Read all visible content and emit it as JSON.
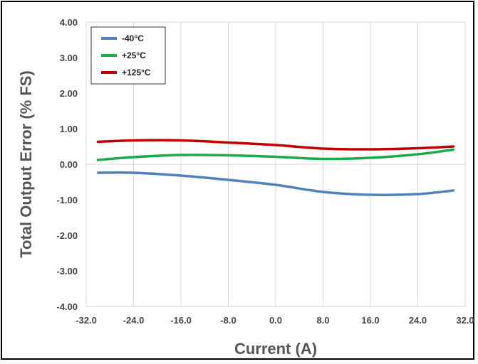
{
  "chart_data": {
    "type": "line",
    "title": "",
    "xlabel": "Current (A)",
    "ylabel": "Total Output Error (% FS)",
    "xlim": [
      -32,
      32
    ],
    "ylim": [
      -4,
      4
    ],
    "x_ticks": [
      "-32.0",
      "-24.0",
      "-16.0",
      "-8.0",
      "0.0",
      "8.0",
      "16.0",
      "24.0",
      "32.0"
    ],
    "y_ticks": [
      "4.00",
      "3.00",
      "2.00",
      "1.00",
      "0.00",
      "-1.00",
      "-2.00",
      "-3.00",
      "-4.00"
    ],
    "grid": "vertical",
    "legend_position": "top-left",
    "series": [
      {
        "name": "-40°C",
        "color": "#4F81BD",
        "points": [
          [
            -30,
            -0.24
          ],
          [
            -24,
            -0.24
          ],
          [
            -16,
            -0.32
          ],
          [
            -8,
            -0.44
          ],
          [
            0,
            -0.58
          ],
          [
            8,
            -0.78
          ],
          [
            16,
            -0.86
          ],
          [
            24,
            -0.84
          ],
          [
            30,
            -0.74
          ]
        ]
      },
      {
        "name": "+25°C",
        "color": "#1AAB4B",
        "points": [
          [
            -30,
            0.12
          ],
          [
            -24,
            0.2
          ],
          [
            -16,
            0.26
          ],
          [
            -8,
            0.25
          ],
          [
            0,
            0.21
          ],
          [
            8,
            0.15
          ],
          [
            16,
            0.18
          ],
          [
            24,
            0.28
          ],
          [
            30,
            0.41
          ]
        ]
      },
      {
        "name": "+125°C",
        "color": "#C00000",
        "points": [
          [
            -30,
            0.63
          ],
          [
            -24,
            0.67
          ],
          [
            -16,
            0.67
          ],
          [
            -8,
            0.61
          ],
          [
            0,
            0.54
          ],
          [
            8,
            0.44
          ],
          [
            16,
            0.42
          ],
          [
            24,
            0.45
          ],
          [
            30,
            0.5
          ]
        ]
      }
    ]
  }
}
